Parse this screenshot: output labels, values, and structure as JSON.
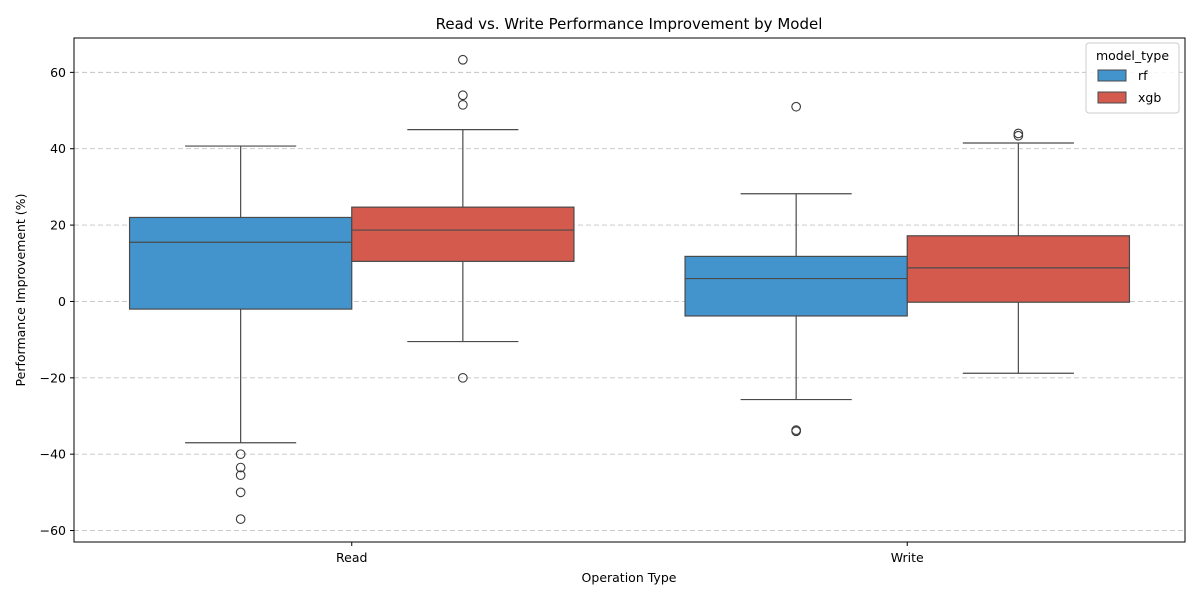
{
  "chart_data": {
    "type": "boxplot",
    "title": "Read vs. Write Performance Improvement by Model",
    "xlabel": "Operation Type",
    "ylabel": "Performance Improvement (%)",
    "categories": [
      "Read",
      "Write"
    ],
    "ylim": [
      -63,
      69
    ],
    "yticks": [
      -60,
      -40,
      -20,
      0,
      20,
      40,
      60
    ],
    "grid": "horizontal-dashed",
    "legend": {
      "title": "model_type",
      "placement": "top-right"
    },
    "series": [
      {
        "name": "rf",
        "color": "#4394cc",
        "boxes": [
          {
            "category": "Read",
            "whisker_low": -37,
            "q1": -2,
            "median": 15.5,
            "q3": 22,
            "whisker_high": 40.7,
            "outliers": [
              -40,
              -43.5,
              -45.5,
              -50,
              -57
            ]
          },
          {
            "category": "Write",
            "whisker_low": -25.7,
            "q1": -3.8,
            "median": 6,
            "q3": 11.8,
            "whisker_high": 28.2,
            "outliers": [
              51,
              -33.7,
              -34
            ]
          }
        ]
      },
      {
        "name": "xgb",
        "color": "#d55a4e",
        "boxes": [
          {
            "category": "Read",
            "whisker_low": -10.5,
            "q1": 10.5,
            "median": 18.7,
            "q3": 24.7,
            "whisker_high": 45,
            "outliers": [
              63.3,
              54,
              51.5,
              -20
            ]
          },
          {
            "category": "Write",
            "whisker_low": -18.8,
            "q1": -0.2,
            "median": 8.8,
            "q3": 17.2,
            "whisker_high": 41.5,
            "outliers": [
              44,
              43.4
            ]
          }
        ]
      }
    ]
  }
}
